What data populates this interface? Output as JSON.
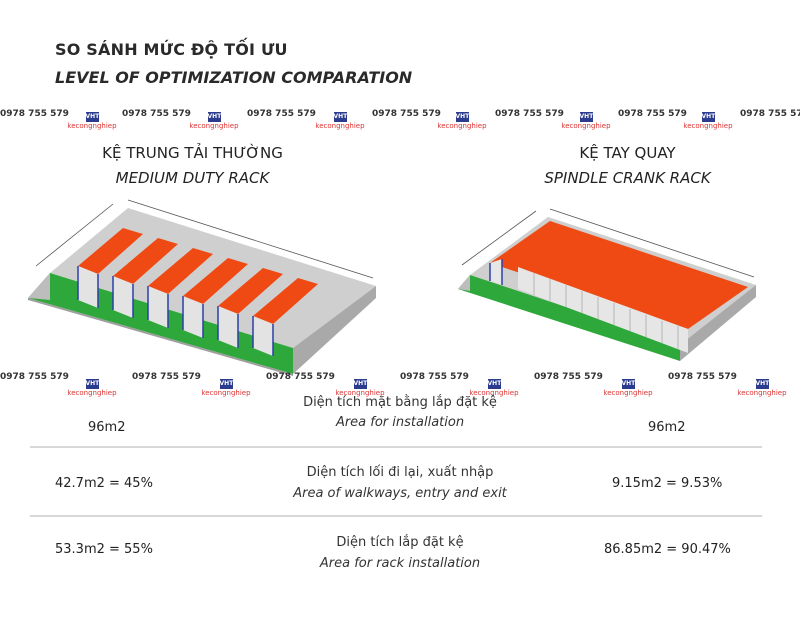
{
  "header": {
    "title_vn": "SO SÁNH MỨC ĐỘ TỐI ƯU",
    "title_en": "LEVEL OF OPTIMIZATION COMPARATION"
  },
  "watermark": {
    "phone": "0978 755 579",
    "logo_mark": "VHT",
    "logo_text": "kecongnghiep"
  },
  "left_rack": {
    "title_vn": "KỆ TRUNG TẢI THƯỜNG",
    "title_en": "MEDIUM DUTY RACK"
  },
  "right_rack": {
    "title_vn": "KỆ  TAY QUAY",
    "title_en": "SPINDLE CRANK RACK"
  },
  "rows": [
    {
      "label_vn": "Diện tích mặt bằng lắp đặt kệ",
      "label_en": "Area for installation",
      "left_value": "96m2",
      "right_value": "96m2"
    },
    {
      "label_vn": "Diện tích lối đi lại, xuất nhập",
      "label_en": "Area of walkways, entry and exit",
      "left_value": "42.7m2 = 45%",
      "right_value": "9.15m2 = 9.53%"
    },
    {
      "label_vn": "Diện tích lắp đặt kệ",
      "label_en": "Area for rack installation",
      "left_value": "53.3m2 = 55%",
      "right_value": "86.85m2 = 90.47%"
    }
  ],
  "colors": {
    "rack_orange": "#f04a14",
    "floor_green": "#2ea83a",
    "wall_grey": "#b9b9b9",
    "frame_blue": "#2a3fa8"
  }
}
